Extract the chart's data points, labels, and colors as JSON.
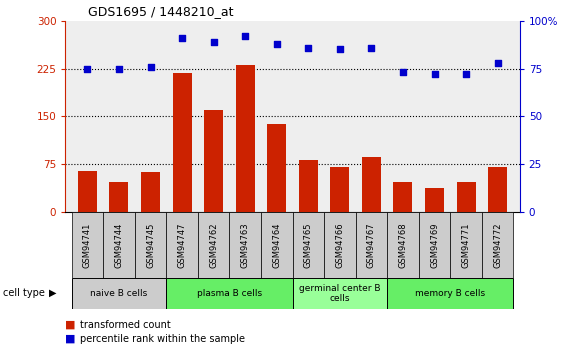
{
  "title": "GDS1695 / 1448210_at",
  "samples": [
    "GSM94741",
    "GSM94744",
    "GSM94745",
    "GSM94747",
    "GSM94762",
    "GSM94763",
    "GSM94764",
    "GSM94765",
    "GSM94766",
    "GSM94767",
    "GSM94768",
    "GSM94769",
    "GSM94771",
    "GSM94772"
  ],
  "transformed_counts": [
    65,
    47,
    63,
    218,
    160,
    230,
    138,
    82,
    70,
    87,
    47,
    38,
    47,
    70
  ],
  "percentile_ranks": [
    75,
    75,
    76,
    91,
    89,
    92,
    88,
    86,
    85,
    86,
    73,
    72,
    72,
    78
  ],
  "bar_color": "#cc2200",
  "dot_color": "#0000cc",
  "ylim_left": [
    0,
    300
  ],
  "ylim_right": [
    0,
    100
  ],
  "yticks_left": [
    0,
    75,
    150,
    225,
    300
  ],
  "yticks_right": [
    0,
    25,
    50,
    75,
    100
  ],
  "ytick_labels_right": [
    "0",
    "25",
    "50",
    "75",
    "100%"
  ],
  "grid_lines": [
    75,
    150,
    225
  ],
  "cell_groups": [
    {
      "label": "naive B cells",
      "start": 0,
      "end": 3,
      "color": "#cccccc"
    },
    {
      "label": "plasma B cells",
      "start": 3,
      "end": 7,
      "color": "#66ee66"
    },
    {
      "label": "germinal center B\ncells",
      "start": 7,
      "end": 10,
      "color": "#99ff99"
    },
    {
      "label": "memory B cells",
      "start": 10,
      "end": 14,
      "color": "#66ee66"
    }
  ],
  "cell_type_label": "cell type",
  "legend_items": [
    {
      "label": "transformed count",
      "color": "#cc2200"
    },
    {
      "label": "percentile rank within the sample",
      "color": "#0000cc"
    }
  ],
  "background_color": "#ffffff",
  "plot_bg_color": "#eeeeee",
  "sample_box_color": "#cccccc"
}
